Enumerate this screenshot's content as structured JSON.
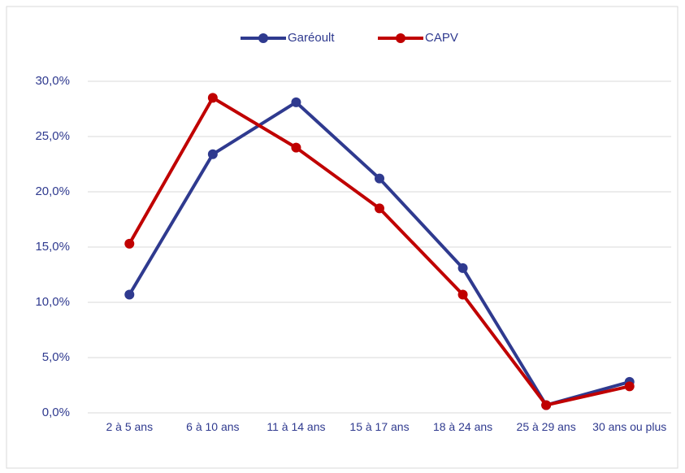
{
  "chart_data": {
    "type": "line",
    "categories": [
      "2 à 5 ans",
      "6 à 10 ans",
      "11 à 14 ans",
      "15 à 17 ans",
      "18 à 24 ans",
      "25 à 29 ans",
      "30 ans ou plus"
    ],
    "series": [
      {
        "name": "Garéoult",
        "color": "#2f3a8f",
        "values": [
          10.7,
          23.4,
          28.1,
          21.2,
          13.1,
          0.7,
          2.8
        ]
      },
      {
        "name": "CAPV",
        "color": "#c00000",
        "values": [
          15.3,
          28.5,
          24.0,
          18.5,
          10.7,
          0.7,
          2.4
        ]
      }
    ],
    "ylim": [
      0,
      30
    ],
    "yticks": [
      {
        "value": 0,
        "label": "0,0%"
      },
      {
        "value": 5,
        "label": "5,0%"
      },
      {
        "value": 10,
        "label": "10,0%"
      },
      {
        "value": 15,
        "label": "15,0%"
      },
      {
        "value": 20,
        "label": "20,0%"
      },
      {
        "value": 25,
        "label": "25,0%"
      },
      {
        "value": 30,
        "label": "30,0%"
      }
    ],
    "grid": true,
    "legend": "top"
  }
}
